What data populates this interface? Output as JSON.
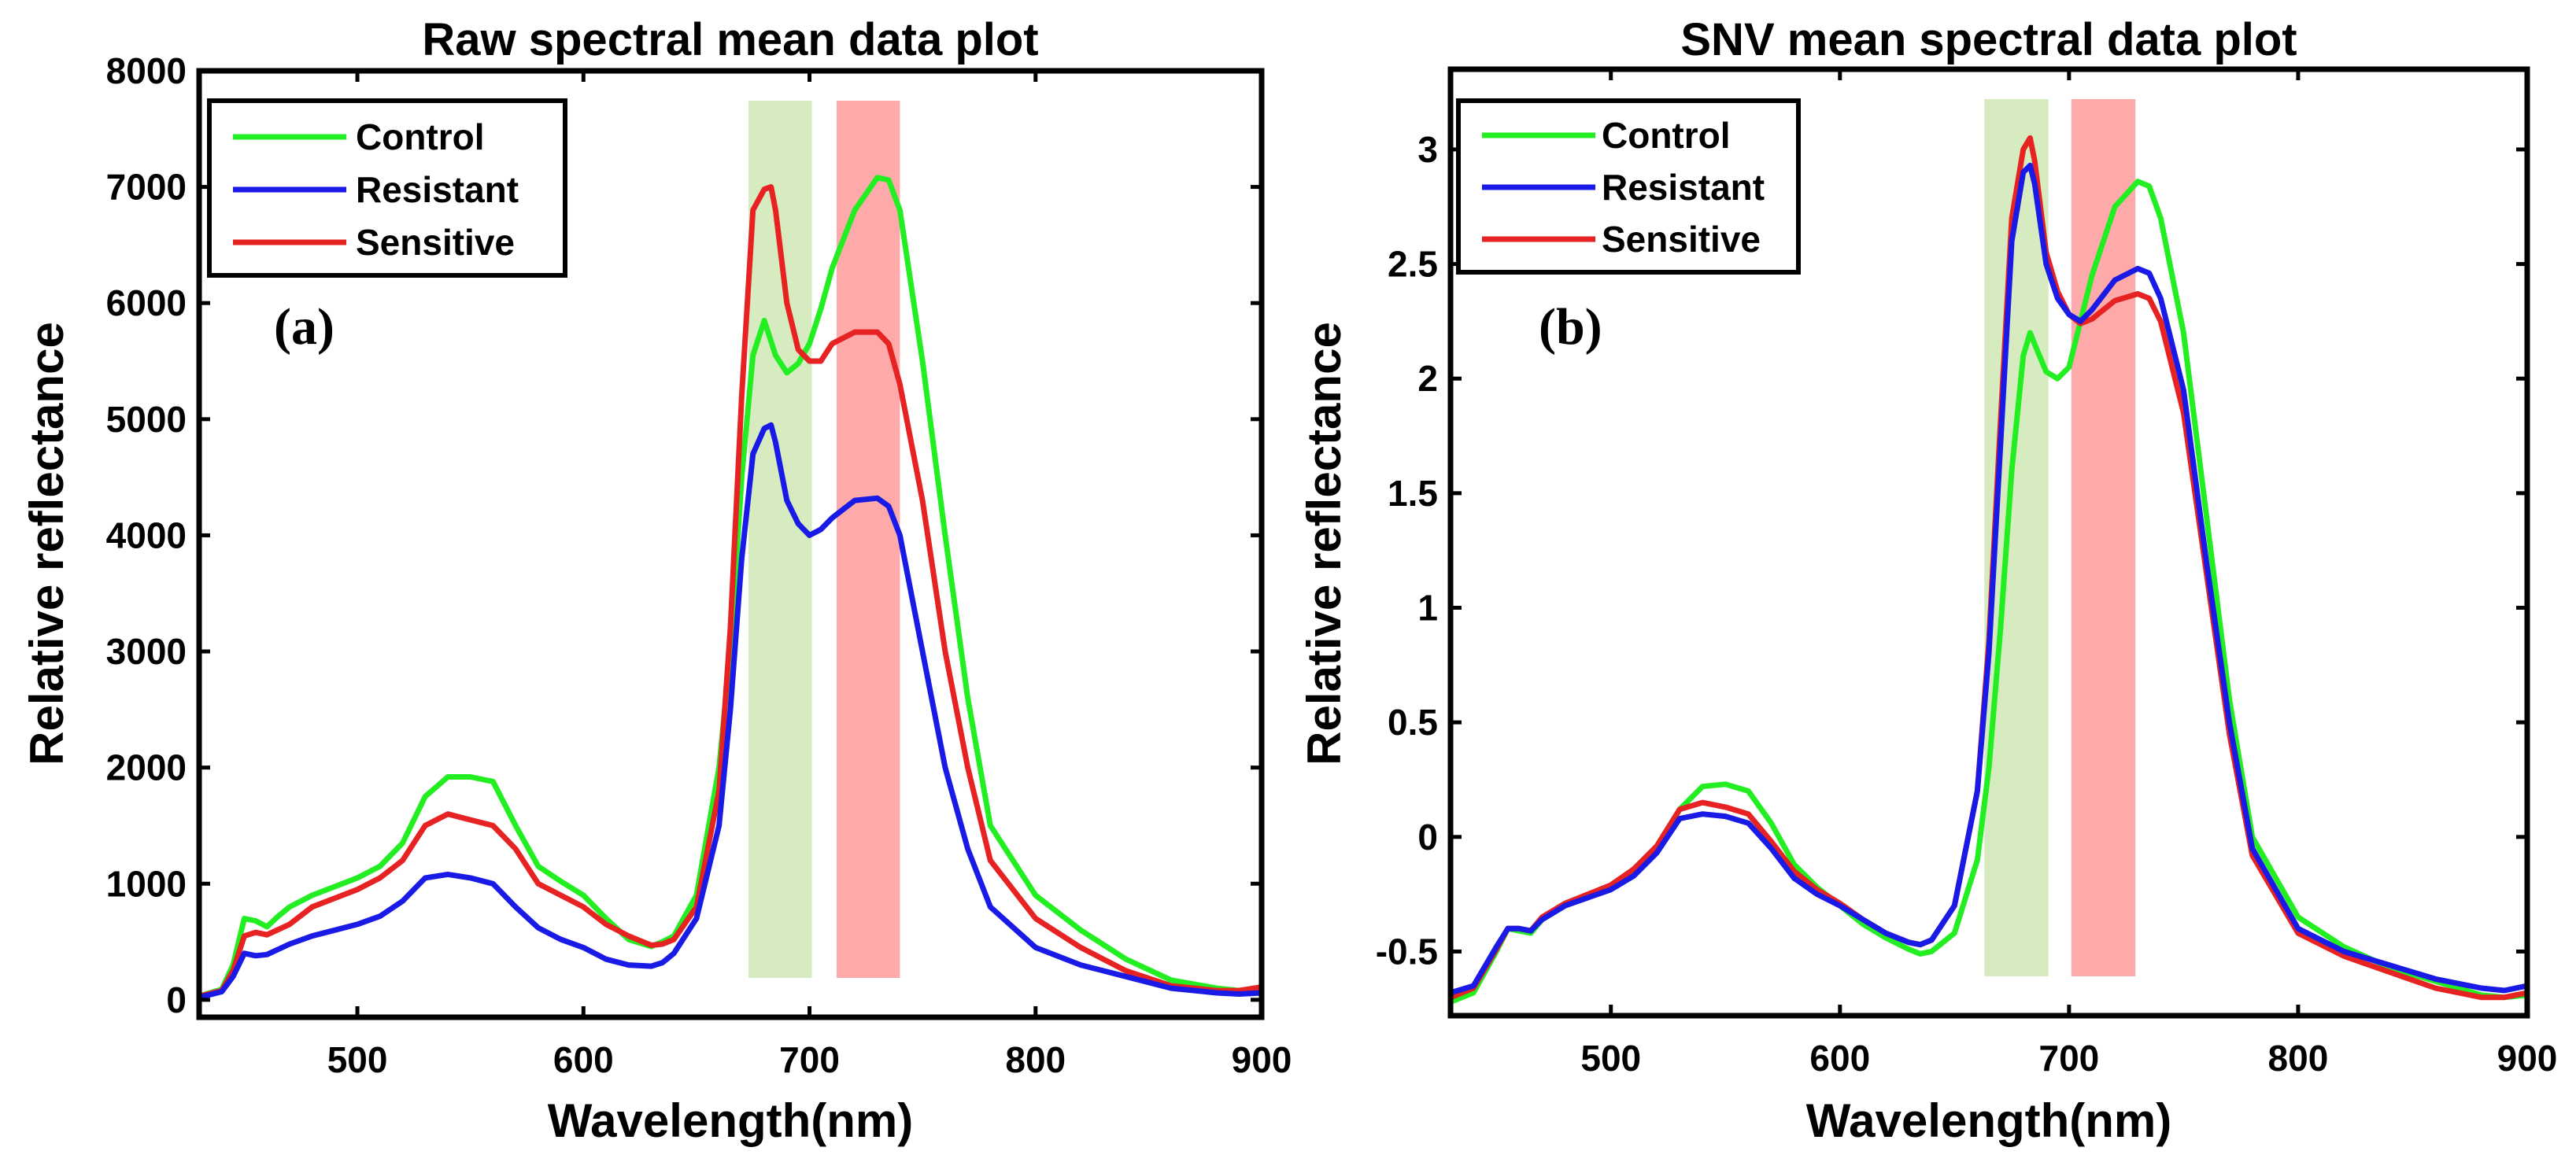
{
  "figure": {
    "colors": {
      "control": "#22ee22",
      "resistant": "#1a1ae6",
      "sensitive": "#e62222",
      "highlight_green": "#d6ecc0",
      "highlight_red": "#ffaaaa"
    }
  },
  "chart_data": [
    {
      "id": "a",
      "type": "line",
      "title": "Raw spectral mean data plot",
      "panel_label": "(a)",
      "xlabel": "Wavelength(nm)",
      "ylabel": "Relative reflectance",
      "xlim": [
        430,
        900
      ],
      "ylim": [
        -150,
        8000
      ],
      "xticks": [
        500,
        600,
        700,
        800,
        900
      ],
      "yticks": [
        0,
        1000,
        2000,
        3000,
        4000,
        5000,
        6000,
        7000,
        8000
      ],
      "ytick_labels": [
        "0",
        "1000",
        "2000",
        "3000",
        "4000",
        "5000",
        "6000",
        "7000",
        "8000"
      ],
      "legend": {
        "position": "top-left",
        "entries": [
          "Control",
          "Resistant",
          "Sensitive"
        ]
      },
      "highlight_bands": [
        {
          "x": [
            673,
            701
          ],
          "color": "green"
        },
        {
          "x": [
            712,
            740
          ],
          "color": "red"
        }
      ],
      "series": [
        {
          "name": "Control",
          "color_key": "control",
          "x": [
            430,
            440,
            445,
            450,
            455,
            460,
            465,
            470,
            480,
            500,
            510,
            520,
            530,
            540,
            550,
            560,
            570,
            580,
            590,
            600,
            610,
            620,
            630,
            635,
            640,
            650,
            660,
            665,
            670,
            675,
            680,
            685,
            690,
            695,
            700,
            705,
            710,
            720,
            730,
            735,
            740,
            750,
            760,
            770,
            780,
            800,
            820,
            840,
            860,
            880,
            890,
            900
          ],
          "y": [
            30,
            90,
            300,
            700,
            680,
            630,
            720,
            800,
            900,
            1050,
            1150,
            1350,
            1750,
            1920,
            1920,
            1880,
            1500,
            1150,
            1020,
            900,
            700,
            520,
            460,
            500,
            550,
            900,
            2000,
            3000,
            4500,
            5550,
            5850,
            5550,
            5400,
            5480,
            5650,
            5950,
            6300,
            6800,
            7080,
            7060,
            6800,
            5500,
            4000,
            2600,
            1500,
            900,
            600,
            350,
            170,
            100,
            80,
            100
          ]
        },
        {
          "name": "Resistant",
          "color_key": "resistant",
          "x": [
            430,
            440,
            445,
            450,
            455,
            460,
            470,
            480,
            500,
            510,
            520,
            530,
            540,
            550,
            560,
            570,
            580,
            590,
            600,
            610,
            620,
            630,
            635,
            640,
            650,
            660,
            665,
            670,
            675,
            680,
            683,
            685,
            690,
            695,
            700,
            705,
            710,
            720,
            730,
            735,
            740,
            750,
            760,
            770,
            780,
            800,
            820,
            840,
            860,
            880,
            890,
            900
          ],
          "y": [
            20,
            70,
            200,
            400,
            380,
            390,
            480,
            550,
            650,
            720,
            850,
            1050,
            1080,
            1050,
            1000,
            800,
            620,
            520,
            450,
            350,
            300,
            290,
            320,
            400,
            700,
            1500,
            2500,
            3800,
            4700,
            4920,
            4950,
            4800,
            4300,
            4100,
            4000,
            4050,
            4150,
            4300,
            4320,
            4250,
            4000,
            3000,
            2000,
            1300,
            800,
            450,
            300,
            200,
            100,
            60,
            50,
            60
          ]
        },
        {
          "name": "Sensitive",
          "color_key": "sensitive",
          "x": [
            430,
            440,
            445,
            450,
            455,
            460,
            470,
            480,
            500,
            510,
            520,
            530,
            540,
            550,
            560,
            570,
            580,
            590,
            600,
            610,
            620,
            630,
            635,
            640,
            650,
            660,
            665,
            670,
            675,
            680,
            683,
            685,
            690,
            695,
            700,
            705,
            710,
            720,
            730,
            735,
            740,
            750,
            760,
            770,
            780,
            800,
            820,
            840,
            860,
            880,
            890,
            900
          ],
          "y": [
            30,
            80,
            250,
            550,
            580,
            560,
            650,
            800,
            950,
            1050,
            1200,
            1500,
            1600,
            1550,
            1500,
            1300,
            1000,
            900,
            800,
            650,
            550,
            470,
            480,
            520,
            800,
            1800,
            3200,
            5200,
            6800,
            6980,
            7000,
            6800,
            6000,
            5600,
            5500,
            5500,
            5650,
            5750,
            5750,
            5650,
            5300,
            4300,
            3000,
            2000,
            1200,
            700,
            450,
            250,
            120,
            80,
            80,
            110
          ]
        }
      ]
    },
    {
      "id": "b",
      "type": "line",
      "title": "SNV mean spectral data plot",
      "panel_label": "(b)",
      "xlabel": "Wavelength(nm)",
      "ylabel": "Relative reflectance",
      "xlim": [
        430,
        900
      ],
      "ylim": [
        -0.78,
        3.35
      ],
      "xticks": [
        500,
        600,
        700,
        800,
        900
      ],
      "yticks": [
        -0.5,
        0,
        0.5,
        1,
        1.5,
        2,
        2.5,
        3
      ],
      "ytick_labels": [
        "-0.5",
        "0",
        "0.5",
        "1",
        "1.5",
        "2",
        "2.5",
        "3"
      ],
      "legend": {
        "position": "top-left",
        "entries": [
          "Control",
          "Resistant",
          "Sensitive"
        ]
      },
      "highlight_bands": [
        {
          "x": [
            663,
            691
          ],
          "color": "green"
        },
        {
          "x": [
            701,
            729
          ],
          "color": "red"
        }
      ],
      "series": [
        {
          "name": "Control",
          "color_key": "control",
          "x": [
            430,
            440,
            450,
            455,
            460,
            465,
            470,
            480,
            500,
            510,
            520,
            530,
            540,
            550,
            560,
            570,
            580,
            590,
            600,
            610,
            620,
            630,
            635,
            640,
            650,
            660,
            665,
            670,
            675,
            680,
            683,
            685,
            690,
            695,
            700,
            705,
            710,
            720,
            730,
            735,
            740,
            750,
            760,
            770,
            780,
            800,
            820,
            840,
            860,
            880,
            890,
            900
          ],
          "y": [
            -0.72,
            -0.68,
            -0.5,
            -0.4,
            -0.41,
            -0.42,
            -0.36,
            -0.3,
            -0.22,
            -0.15,
            -0.05,
            0.12,
            0.22,
            0.23,
            0.2,
            0.06,
            -0.12,
            -0.22,
            -0.3,
            -0.38,
            -0.44,
            -0.49,
            -0.51,
            -0.5,
            -0.42,
            -0.1,
            0.3,
            0.9,
            1.6,
            2.1,
            2.2,
            2.15,
            2.03,
            2.0,
            2.05,
            2.25,
            2.45,
            2.75,
            2.86,
            2.84,
            2.7,
            2.2,
            1.4,
            0.6,
            0.0,
            -0.35,
            -0.48,
            -0.57,
            -0.63,
            -0.69,
            -0.7,
            -0.69
          ]
        },
        {
          "name": "Resistant",
          "color_key": "resistant",
          "x": [
            430,
            440,
            450,
            455,
            460,
            465,
            470,
            480,
            500,
            510,
            520,
            530,
            540,
            550,
            560,
            570,
            580,
            590,
            600,
            610,
            620,
            630,
            635,
            640,
            650,
            660,
            665,
            670,
            675,
            680,
            683,
            685,
            690,
            695,
            700,
            705,
            710,
            720,
            730,
            735,
            740,
            750,
            760,
            770,
            780,
            800,
            820,
            840,
            860,
            880,
            890,
            900
          ],
          "y": [
            -0.68,
            -0.65,
            -0.48,
            -0.4,
            -0.4,
            -0.41,
            -0.36,
            -0.3,
            -0.23,
            -0.17,
            -0.07,
            0.08,
            0.1,
            0.09,
            0.06,
            -0.05,
            -0.18,
            -0.25,
            -0.3,
            -0.36,
            -0.42,
            -0.46,
            -0.47,
            -0.45,
            -0.3,
            0.2,
            0.8,
            1.7,
            2.6,
            2.9,
            2.93,
            2.85,
            2.5,
            2.35,
            2.28,
            2.25,
            2.3,
            2.43,
            2.48,
            2.46,
            2.35,
            1.95,
            1.2,
            0.5,
            -0.05,
            -0.4,
            -0.5,
            -0.56,
            -0.62,
            -0.66,
            -0.67,
            -0.65
          ]
        },
        {
          "name": "Sensitive",
          "color_key": "sensitive",
          "x": [
            430,
            440,
            450,
            455,
            460,
            465,
            470,
            480,
            500,
            510,
            520,
            530,
            540,
            550,
            560,
            570,
            580,
            590,
            600,
            610,
            620,
            630,
            635,
            640,
            650,
            660,
            665,
            670,
            675,
            680,
            683,
            685,
            690,
            695,
            700,
            705,
            710,
            720,
            730,
            735,
            740,
            750,
            760,
            770,
            780,
            800,
            820,
            840,
            860,
            880,
            890,
            900
          ],
          "y": [
            -0.7,
            -0.66,
            -0.49,
            -0.4,
            -0.4,
            -0.41,
            -0.35,
            -0.29,
            -0.21,
            -0.14,
            -0.04,
            0.12,
            0.15,
            0.13,
            0.1,
            -0.02,
            -0.15,
            -0.23,
            -0.29,
            -0.36,
            -0.42,
            -0.46,
            -0.47,
            -0.45,
            -0.3,
            0.2,
            0.85,
            1.8,
            2.7,
            3.0,
            3.05,
            2.95,
            2.55,
            2.38,
            2.28,
            2.24,
            2.26,
            2.34,
            2.37,
            2.35,
            2.25,
            1.85,
            1.15,
            0.45,
            -0.08,
            -0.42,
            -0.52,
            -0.59,
            -0.66,
            -0.7,
            -0.7,
            -0.68
          ]
        }
      ]
    }
  ]
}
